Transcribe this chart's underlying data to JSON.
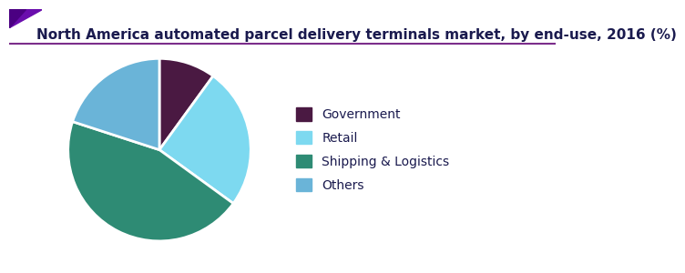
{
  "title": "North America automated parcel delivery terminals market, by end-use, 2016 (%)",
  "labels": [
    "Government",
    "Retail",
    "Shipping & Logistics",
    "Others"
  ],
  "sizes": [
    10,
    25,
    45,
    20
  ],
  "colors": [
    "#4a1942",
    "#7dd9f0",
    "#2e8b74",
    "#6ab4d8"
  ],
  "startangle": 90,
  "background_color": "#ffffff",
  "title_color": "#1a1a4e",
  "title_fontsize": 11,
  "legend_fontsize": 10,
  "wedge_linewidth": 2,
  "wedge_edgecolor": "#ffffff"
}
